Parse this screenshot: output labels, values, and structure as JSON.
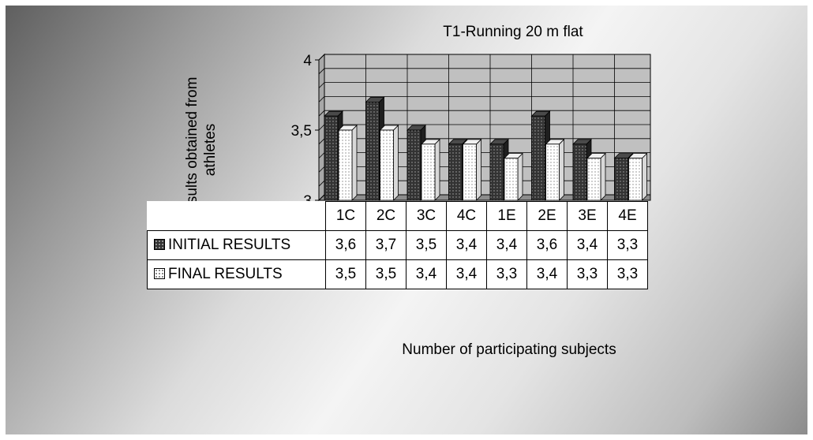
{
  "chart_data": {
    "type": "bar",
    "title": "T1-Running 20 m flat",
    "ylabel": "Results obtained from athletes",
    "xlabel": "Number of participating subjects",
    "categories": [
      "1C",
      "2C",
      "3C",
      "4C",
      "1E",
      "2E",
      "3E",
      "4E"
    ],
    "ylim": [
      3,
      4
    ],
    "yticks": [
      "3",
      "3,5",
      "4"
    ],
    "grid": true,
    "legend": "data table",
    "series": [
      {
        "name": "INITIAL RESULTS",
        "values": [
          3.6,
          3.7,
          3.5,
          3.4,
          3.4,
          3.6,
          3.4,
          3.3
        ],
        "labels": [
          "3,6",
          "3,7",
          "3,5",
          "3,4",
          "3,4",
          "3,6",
          "3,4",
          "3,3"
        ],
        "color": "#333333"
      },
      {
        "name": "FINAL RESULTS",
        "values": [
          3.5,
          3.5,
          3.4,
          3.4,
          3.3,
          3.4,
          3.3,
          3.3
        ],
        "labels": [
          "3,5",
          "3,5",
          "3,4",
          "3,4",
          "3,3",
          "3,4",
          "3,3",
          "3,3"
        ],
        "color": "#ffffff"
      }
    ]
  }
}
